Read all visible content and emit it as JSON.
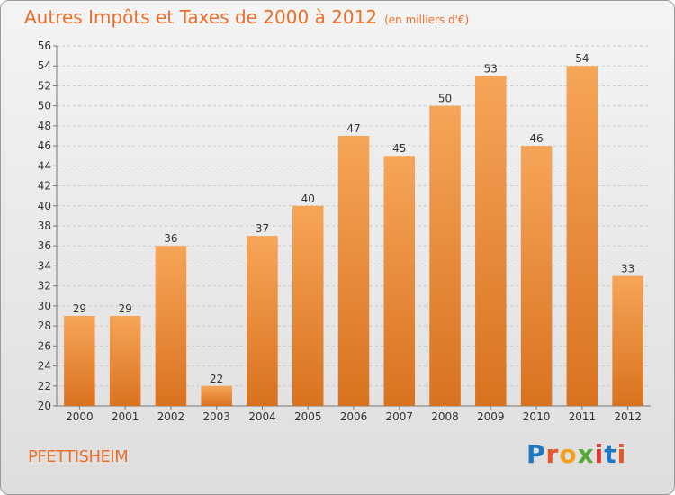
{
  "title": "Autres Impôts et Taxes de 2000 à 2012",
  "subtitle": "(en milliers d'€)",
  "footer": {
    "city": "PFETTISHEIM",
    "brand": "Proxiti"
  },
  "colors": {
    "accent": "#ea6f2c",
    "bar_top": "#f6a558",
    "bar_bottom": "#d9721f",
    "logo_letters": [
      "#1f77c2",
      "#e8552b",
      "#f0a21e",
      "#56a83a",
      "#e23b2e",
      "#1f77c2",
      "#e8552b"
    ]
  },
  "chart_data": {
    "type": "bar",
    "title": "Autres Impôts et Taxes de 2000 à 2012",
    "subtitle": "(en milliers d'€)",
    "xlabel": "",
    "ylabel": "",
    "categories": [
      "2000",
      "2001",
      "2002",
      "2003",
      "2004",
      "2005",
      "2006",
      "2007",
      "2008",
      "2009",
      "2010",
      "2011",
      "2012"
    ],
    "values": [
      29,
      29,
      36,
      22,
      37,
      40,
      47,
      45,
      50,
      53,
      46,
      54,
      33
    ],
    "ylim": [
      20,
      56
    ],
    "ytick_step": 2,
    "grid": "horizontal-dashed",
    "data_labels": true
  }
}
